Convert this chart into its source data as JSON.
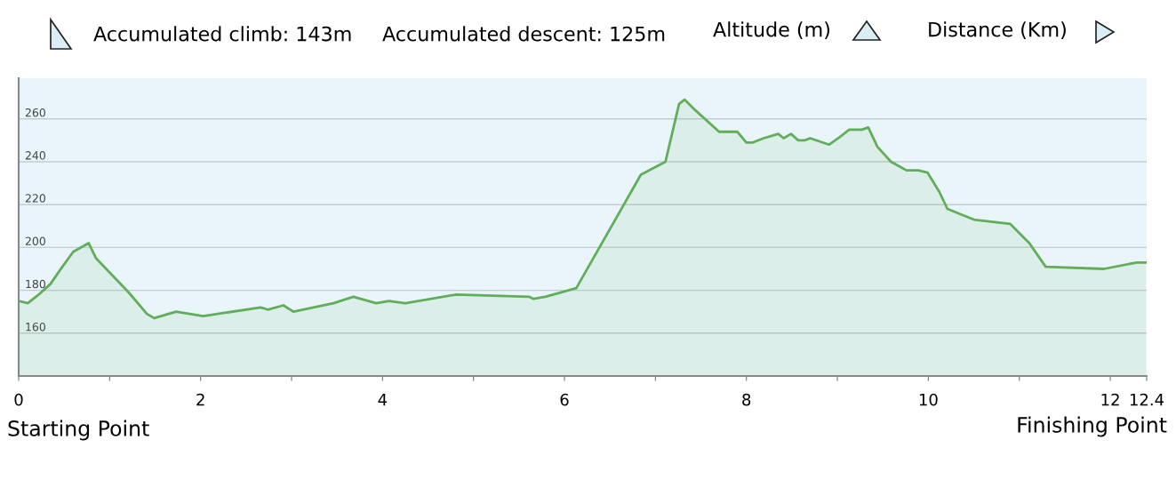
{
  "chart_data": {
    "type": "area",
    "annotations": [
      "Accumulated climb: 143m",
      "Accumulated descent: 125m",
      "Starting Point",
      "Finishing Point"
    ],
    "ylabel": "Altitude (m)",
    "xlabel": "Distance (Km)",
    "series": [
      {
        "color": "#62ad5a",
        "x": [
          0,
          0.1,
          0.22,
          0.35,
          0.48,
          0.6,
          0.77,
          0.85,
          1.21,
          1.41,
          1.49,
          1.73,
          2.03,
          2.66,
          2.74,
          2.91,
          3.02,
          3.46,
          3.68,
          3.93,
          4.07,
          4.25,
          4.81,
          5.61,
          5.66,
          5.79,
          6.13,
          6.84,
          7.11,
          7.26,
          7.32,
          7.44,
          7.7,
          7.9,
          8.0,
          8.07,
          8.19,
          8.35,
          8.41,
          8.49,
          8.57,
          8.64,
          8.7,
          8.91,
          9.01,
          9.13,
          9.27,
          9.34,
          9.44,
          9.59,
          9.76,
          9.89,
          9.99,
          10.12,
          10.21,
          10.5,
          10.9,
          11.11,
          11.29,
          11.93,
          12.29,
          12.39
        ],
        "values": [
          175,
          174,
          178,
          183,
          191,
          198,
          202,
          195,
          179,
          169,
          167,
          170,
          168,
          172,
          171,
          173,
          170,
          174,
          177,
          174,
          175,
          174,
          178,
          177,
          176,
          177,
          181,
          234,
          240,
          267,
          269,
          264,
          254,
          254,
          249,
          249,
          251,
          253,
          251,
          253,
          250,
          250,
          251,
          248,
          251,
          255,
          255,
          256,
          247,
          240,
          236,
          236,
          235,
          226,
          218,
          213,
          211,
          202,
          191,
          190,
          193,
          193
        ]
      }
    ],
    "xlim": [
      0,
      12.4
    ],
    "ylim": [
      140,
      279
    ],
    "xticks": [
      0,
      {
        "value": 1,
        "label": null
      },
      2,
      {
        "value": 3,
        "label": null
      },
      4,
      {
        "value": 5,
        "label": null
      },
      6,
      {
        "value": 7,
        "label": null
      },
      8,
      {
        "value": 9,
        "label": null
      },
      10,
      {
        "value": 11,
        "label": null
      },
      12,
      12.4
    ],
    "yticks": [
      160,
      180,
      200,
      220,
      240,
      260
    ],
    "grid": "y"
  }
}
